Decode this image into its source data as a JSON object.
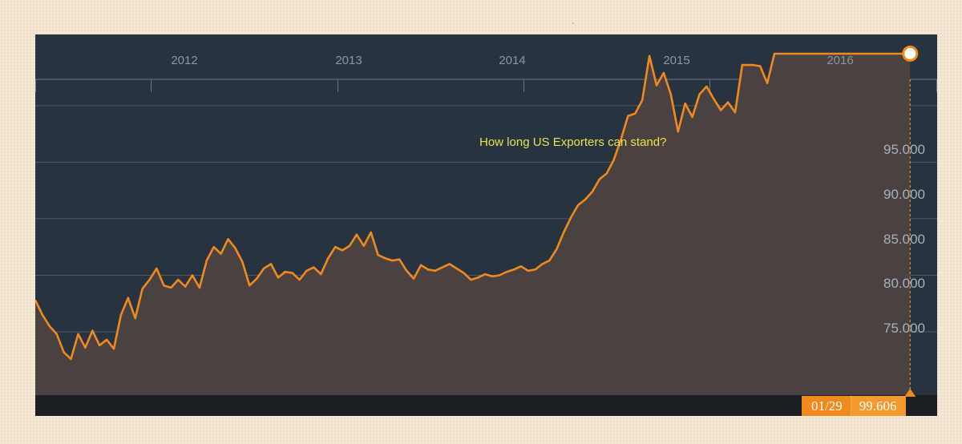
{
  "chart_data": {
    "type": "area",
    "title": "",
    "xlabel": "",
    "ylabel": "",
    "x_ticks": [
      "2012",
      "2013",
      "2014",
      "2015",
      "2016"
    ],
    "y_ticks": [
      "75.000",
      "80.000",
      "85.000",
      "90.000",
      "95.000"
    ],
    "ylim": [
      69.4,
      101.3
    ],
    "xlim": [
      "2011-05-20",
      "2016-03-22"
    ],
    "grid": true,
    "annotation": "How long US Exporters can stand?",
    "last_point": {
      "date_label": "01/29",
      "value_label": "99.606",
      "date": "2016-01-29",
      "value": 99.606
    },
    "colors": {
      "line": "#f08a1c",
      "fill": "#4c4340",
      "panel": "#283340",
      "annotation": "#e9e24a"
    },
    "series": [
      {
        "x": [
          "2011-05-20",
          "2011-06-03",
          "2011-06-17",
          "2011-07-01",
          "2011-07-15",
          "2011-07-29",
          "2011-08-12",
          "2011-08-26",
          "2011-09-09",
          "2011-09-23",
          "2011-10-07",
          "2011-10-21",
          "2011-11-04",
          "2011-11-18",
          "2011-12-02",
          "2011-12-16",
          "2011-12-30",
          "2012-01-13",
          "2012-01-27",
          "2012-02-10",
          "2012-02-24",
          "2012-03-09",
          "2012-03-23",
          "2012-04-06",
          "2012-04-20",
          "2012-05-04",
          "2012-05-18",
          "2012-06-01",
          "2012-06-15",
          "2012-06-29",
          "2012-07-13",
          "2012-07-27",
          "2012-08-10",
          "2012-08-24",
          "2012-09-07",
          "2012-09-21",
          "2012-10-05",
          "2012-10-19",
          "2012-11-02",
          "2012-11-16",
          "2012-11-30",
          "2012-12-14",
          "2012-12-28",
          "2013-01-11",
          "2013-01-25",
          "2013-02-08",
          "2013-02-22",
          "2013-03-08",
          "2013-03-22",
          "2013-04-05",
          "2013-04-19",
          "2013-05-03",
          "2013-05-17",
          "2013-05-31",
          "2013-06-14",
          "2013-06-28",
          "2013-07-12",
          "2013-07-26",
          "2013-08-09",
          "2013-08-23",
          "2013-09-06",
          "2013-09-20",
          "2013-10-04",
          "2013-10-18",
          "2013-11-01",
          "2013-11-15",
          "2013-11-29",
          "2013-12-13",
          "2013-12-27",
          "2014-01-10",
          "2014-01-24",
          "2014-02-07",
          "2014-02-21",
          "2014-03-07",
          "2014-03-21",
          "2014-04-04",
          "2014-04-18",
          "2014-05-02",
          "2014-05-16",
          "2014-05-30",
          "2014-06-13",
          "2014-06-27",
          "2014-07-11",
          "2014-07-25",
          "2014-08-08",
          "2014-08-22",
          "2014-09-05",
          "2014-09-19",
          "2014-10-03",
          "2014-10-17",
          "2014-10-31",
          "2014-11-14",
          "2014-11-28",
          "2014-12-12",
          "2014-12-26",
          "2015-01-09",
          "2015-01-23",
          "2015-02-06",
          "2015-02-20",
          "2015-03-06",
          "2015-03-13",
          "2015-03-27",
          "2015-04-10",
          "2015-04-24",
          "2015-05-08",
          "2015-05-22",
          "2015-06-05",
          "2015-06-19",
          "2015-07-03",
          "2015-07-17",
          "2015-07-31",
          "2015-08-14",
          "2015-08-28",
          "2015-09-11",
          "2015-09-25",
          "2015-10-09",
          "2015-10-23",
          "2015-11-06",
          "2015-11-20",
          "2015-12-04",
          "2015-12-18",
          "2016-01-01",
          "2016-01-15",
          "2016-01-29"
        ],
        "values": [
          77.8,
          76.5,
          75.5,
          74.8,
          73.2,
          72.6,
          74.8,
          73.6,
          75.1,
          73.8,
          74.3,
          73.5,
          76.5,
          78.0,
          76.2,
          78.8,
          79.6,
          80.6,
          79.1,
          78.9,
          79.6,
          79.0,
          80.0,
          78.9,
          81.3,
          82.5,
          81.9,
          83.2,
          82.4,
          81.2,
          79.1,
          79.7,
          80.6,
          81.0,
          79.8,
          80.3,
          80.2,
          79.6,
          80.4,
          80.7,
          80.1,
          81.5,
          82.5,
          82.2,
          82.6,
          83.6,
          82.6,
          83.8,
          81.8,
          81.5,
          81.3,
          81.4,
          80.4,
          79.7,
          80.9,
          80.5,
          80.4,
          80.7,
          81.0,
          80.6,
          80.2,
          79.6,
          79.8,
          80.1,
          79.9,
          80.0,
          80.3,
          80.5,
          80.8,
          80.4,
          80.5,
          81.0,
          81.3,
          82.3,
          83.8,
          85.1,
          86.2,
          86.7,
          87.4,
          88.5,
          89.0,
          90.2,
          92.0,
          94.1,
          94.3,
          95.5,
          99.4,
          96.8,
          97.9,
          96.0,
          92.7,
          95.2,
          94.0,
          96.0,
          96.7,
          95.6,
          94.6,
          95.3,
          94.4,
          98.6,
          98.6,
          98.6,
          98.5,
          97.0,
          99.6,
          99.6,
          99.6,
          99.6,
          99.6,
          99.6,
          99.6,
          99.6,
          99.6,
          99.6,
          99.6,
          99.6,
          99.6,
          99.6,
          99.6,
          99.6,
          99.6,
          99.6,
          99.6,
          99.606
        ]
      }
    ]
  }
}
